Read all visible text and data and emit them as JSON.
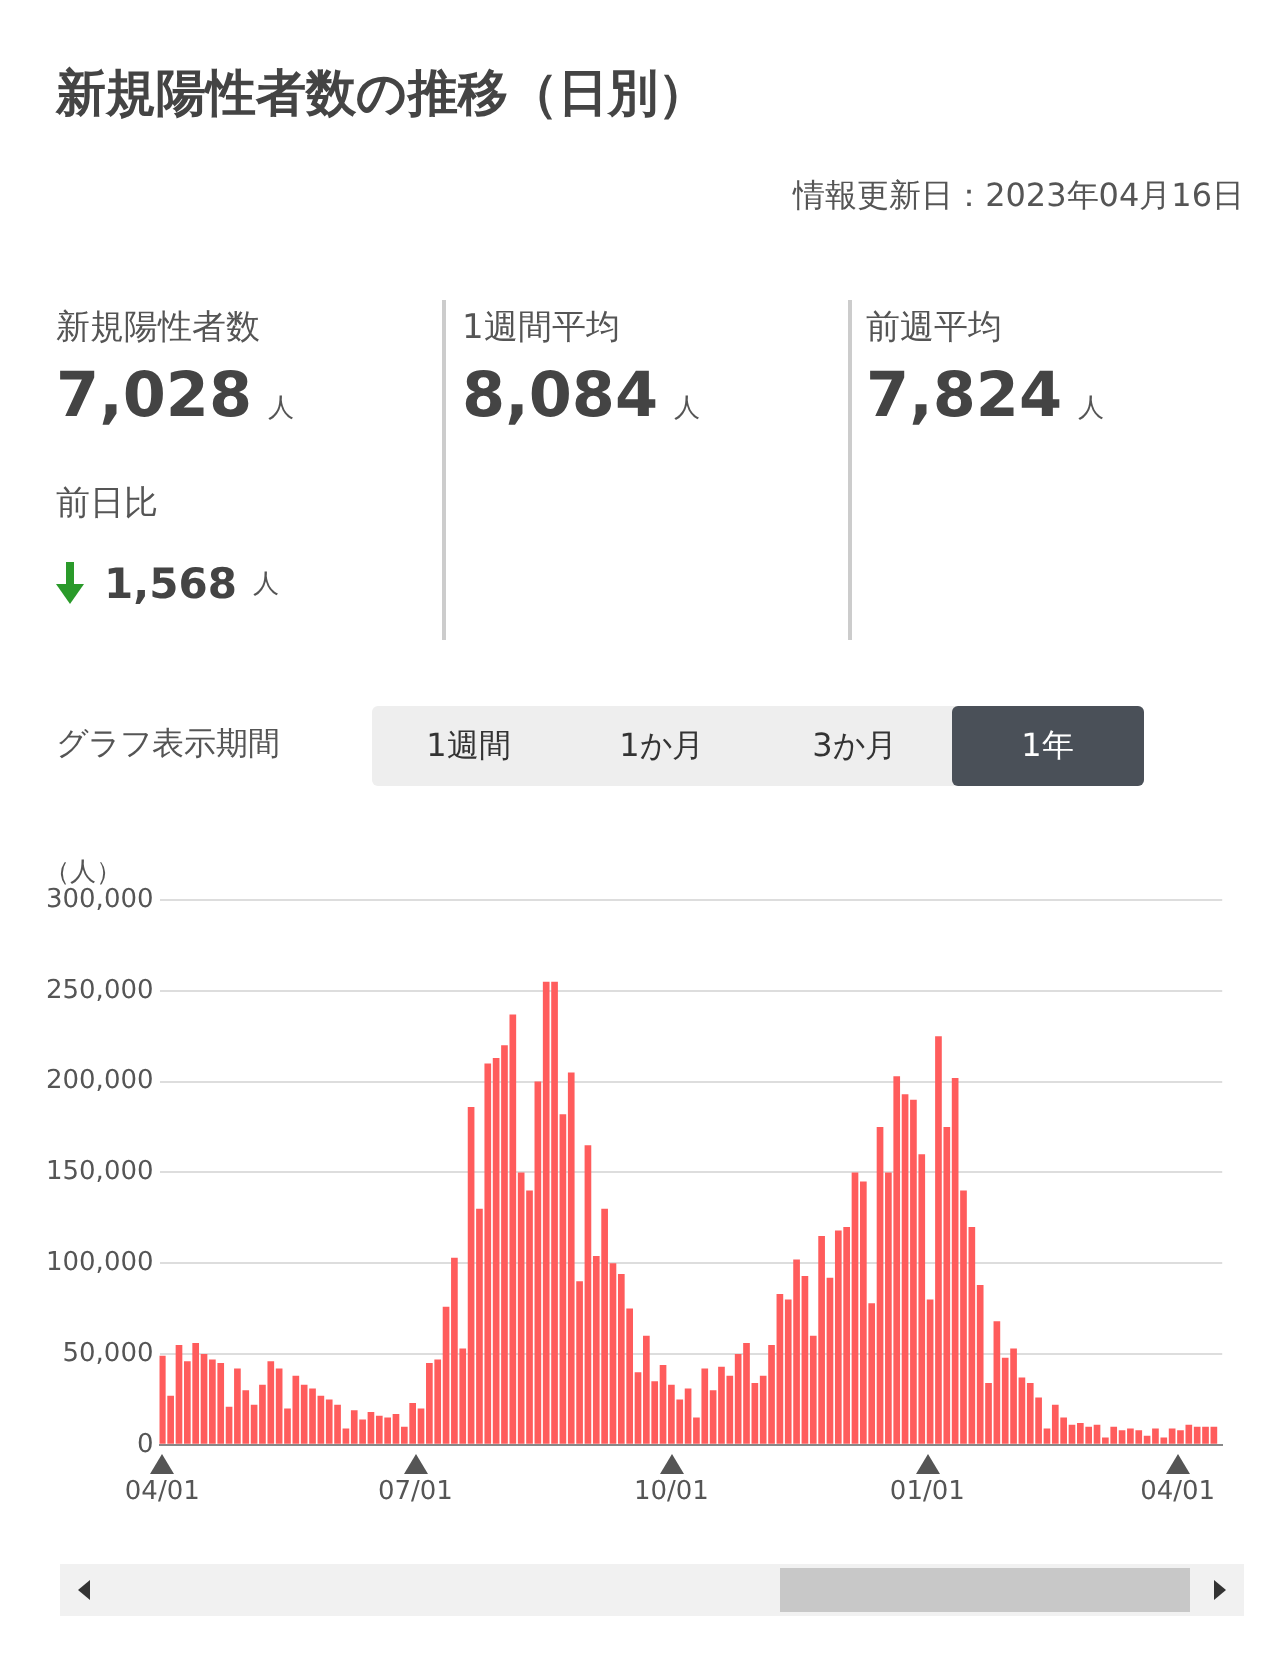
{
  "chart_data": {
    "type": "bar",
    "title": "新規陽性者数の推移（日別）",
    "subtitle": "情報更新日：2023年04月16日",
    "ylabel": "（人）",
    "annotations": [
      "新規陽性者数",
      "7,028",
      "人",
      "前日比",
      "1,568",
      "人",
      "1週間平均",
      "8,084",
      "人",
      "前週平均",
      "7,824",
      "人",
      "グラフ表示期間",
      "1週間",
      "1か月",
      "3か月",
      "1年"
    ],
    "x": [
      "2022-04-01",
      "2022-04-04",
      "2022-04-07",
      "2022-04-10",
      "2022-04-13",
      "2022-04-16",
      "2022-04-19",
      "2022-04-22",
      "2022-04-25",
      "2022-04-28",
      "2022-05-01",
      "2022-05-04",
      "2022-05-07",
      "2022-05-10",
      "2022-05-13",
      "2022-05-16",
      "2022-05-19",
      "2022-05-22",
      "2022-05-25",
      "2022-05-28",
      "2022-05-31",
      "2022-06-03",
      "2022-06-06",
      "2022-06-09",
      "2022-06-12",
      "2022-06-15",
      "2022-06-18",
      "2022-06-21",
      "2022-06-24",
      "2022-06-27",
      "2022-06-30",
      "2022-07-03",
      "2022-07-06",
      "2022-07-09",
      "2022-07-12",
      "2022-07-15",
      "2022-07-18",
      "2022-07-21",
      "2022-07-24",
      "2022-07-27",
      "2022-07-30",
      "2022-08-02",
      "2022-08-05",
      "2022-08-08",
      "2022-08-11",
      "2022-08-14",
      "2022-08-17",
      "2022-08-20",
      "2022-08-23",
      "2022-08-26",
      "2022-08-29",
      "2022-09-01",
      "2022-09-04",
      "2022-09-07",
      "2022-09-10",
      "2022-09-13",
      "2022-09-16",
      "2022-09-19",
      "2022-09-22",
      "2022-09-25",
      "2022-09-28",
      "2022-10-01",
      "2022-10-04",
      "2022-10-07",
      "2022-10-10",
      "2022-10-13",
      "2022-10-16",
      "2022-10-19",
      "2022-10-22",
      "2022-10-25",
      "2022-10-28",
      "2022-10-31",
      "2022-11-03",
      "2022-11-06",
      "2022-11-09",
      "2022-11-12",
      "2022-11-15",
      "2022-11-18",
      "2022-11-21",
      "2022-11-24",
      "2022-11-27",
      "2022-11-30",
      "2022-12-03",
      "2022-12-06",
      "2022-12-09",
      "2022-12-12",
      "2022-12-15",
      "2022-12-18",
      "2022-12-21",
      "2022-12-24",
      "2022-12-27",
      "2022-12-30",
      "2023-01-02",
      "2023-01-05",
      "2023-01-08",
      "2023-01-11",
      "2023-01-14",
      "2023-01-17",
      "2023-01-20",
      "2023-01-23",
      "2023-01-26",
      "2023-01-29",
      "2023-02-01",
      "2023-02-04",
      "2023-02-07",
      "2023-02-10",
      "2023-02-13",
      "2023-02-16",
      "2023-02-19",
      "2023-02-22",
      "2023-02-25",
      "2023-02-28",
      "2023-03-03",
      "2023-03-06",
      "2023-03-09",
      "2023-03-12",
      "2023-03-15",
      "2023-03-18",
      "2023-03-21",
      "2023-03-24",
      "2023-03-27",
      "2023-03-30",
      "2023-04-02",
      "2023-04-05",
      "2023-04-08",
      "2023-04-11",
      "2023-04-14"
    ],
    "values": [
      49000,
      27000,
      55000,
      46000,
      56000,
      50000,
      47000,
      45000,
      21000,
      42000,
      30000,
      22000,
      33000,
      46000,
      42000,
      20000,
      38000,
      33000,
      31000,
      27000,
      25000,
      22000,
      9000,
      19000,
      14000,
      18000,
      16000,
      15000,
      17000,
      10000,
      23000,
      20000,
      45000,
      47000,
      76000,
      103000,
      53000,
      186000,
      130000,
      210000,
      213000,
      220000,
      237000,
      150000,
      140000,
      200000,
      255000,
      255000,
      182000,
      205000,
      90000,
      165000,
      104000,
      130000,
      100000,
      94000,
      75000,
      40000,
      60000,
      35000,
      44000,
      33000,
      25000,
      31000,
      15000,
      42000,
      30000,
      43000,
      38000,
      50000,
      56000,
      34000,
      38000,
      55000,
      83000,
      80000,
      102000,
      93000,
      60000,
      115000,
      92000,
      118000,
      120000,
      150000,
      145000,
      78000,
      175000,
      150000,
      203000,
      193000,
      190000,
      160000,
      80000,
      225000,
      175000,
      202000,
      140000,
      120000,
      88000,
      34000,
      68000,
      48000,
      53000,
      37000,
      34000,
      26000,
      9000,
      22000,
      15000,
      11000,
      12000,
      10000,
      11000,
      4000,
      10000,
      8000,
      9000,
      8000,
      5000,
      9000,
      4000,
      9000,
      8000,
      11000,
      10000,
      10000,
      10000
    ],
    "color": "#ff5c5c",
    "xlim": [
      "2022-03-31",
      "2023-04-17"
    ],
    "xticks": [
      {
        "value": "2022-04-01",
        "label": "04/01"
      },
      {
        "value": "2022-07-01",
        "label": "07/01"
      },
      {
        "value": "2022-10-01",
        "label": "10/01"
      },
      {
        "value": "2023-01-01",
        "label": "01/01"
      },
      {
        "value": "2023-04-01",
        "label": "04/01"
      }
    ],
    "ylim": [
      0,
      300000
    ],
    "yticks": [
      0,
      {
        "value": 50000,
        "label": "50,000"
      },
      {
        "value": 100000,
        "label": "100,000"
      },
      {
        "value": 150000,
        "label": "150,000"
      },
      {
        "value": 200000,
        "label": "200,000"
      },
      {
        "value": 250000,
        "label": "250,000"
      },
      {
        "value": 300000,
        "label": "300,000"
      }
    ],
    "grid": "y",
    "legend": false
  }
}
